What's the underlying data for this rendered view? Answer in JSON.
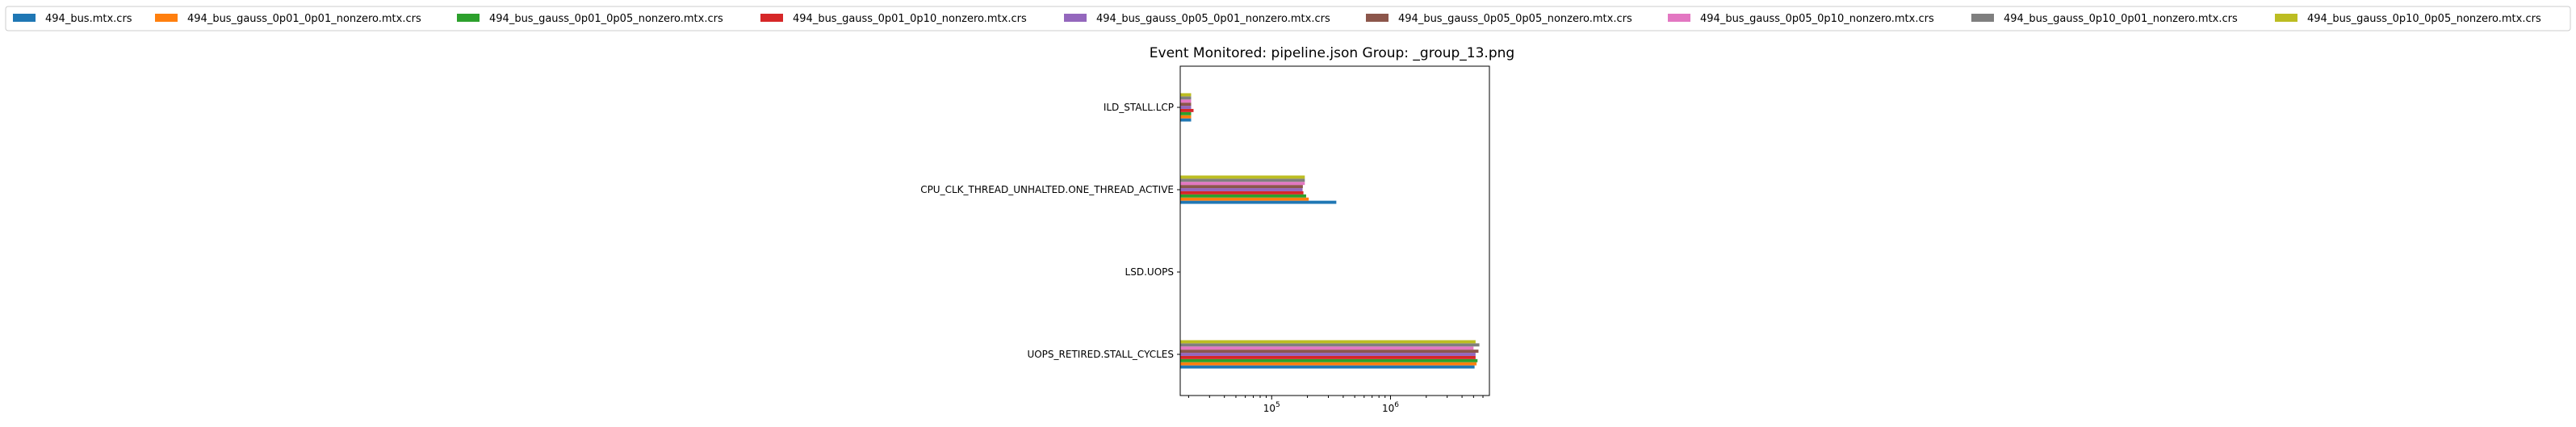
{
  "chart_data": {
    "type": "bar",
    "orientation": "horizontal",
    "title": "Event Monitored: pipeline.json Group: _group_13.png",
    "xlabel": "",
    "ylabel": "",
    "x_scale": "log",
    "xlim": [
      17000,
      6800000
    ],
    "x_ticks": [
      {
        "value": 100000,
        "base": "10",
        "exp": "5"
      },
      {
        "value": 1000000,
        "base": "10",
        "exp": "6"
      }
    ],
    "legend_position": "top, above plot",
    "categories": [
      "UOPS_RETIRED.STALL_CYCLES",
      "LSD.UOPS",
      "CPU_CLK_THREAD_UNHALTED.ONE_THREAD_ACTIVE",
      "ILD_STALL.LCP"
    ],
    "series": [
      {
        "name": "494_bus.mtx.crs",
        "color": "#1f77b4",
        "values": [
          5100000,
          null,
          350000,
          21000
        ]
      },
      {
        "name": "494_bus_gauss_0p01_0p01_nonzero.mtx.crs",
        "color": "#ff7f0e",
        "values": [
          5300000,
          null,
          205000,
          21000
        ]
      },
      {
        "name": "494_bus_gauss_0p01_0p05_nonzero.mtx.crs",
        "color": "#2ca02c",
        "values": [
          5400000,
          null,
          195000,
          21000
        ]
      },
      {
        "name": "494_bus_gauss_0p01_0p10_nonzero.mtx.crs",
        "color": "#d62728",
        "values": [
          5200000,
          null,
          185000,
          22000
        ]
      },
      {
        "name": "494_bus_gauss_0p05_0p01_nonzero.mtx.crs",
        "color": "#9467bd",
        "values": [
          5200000,
          null,
          182000,
          21000
        ]
      },
      {
        "name": "494_bus_gauss_0p05_0p05_nonzero.mtx.crs",
        "color": "#8c564b",
        "values": [
          5500000,
          null,
          183000,
          21000
        ]
      },
      {
        "name": "494_bus_gauss_0p05_0p10_nonzero.mtx.crs",
        "color": "#e377c2",
        "values": [
          5000000,
          null,
          190000,
          21000
        ]
      },
      {
        "name": "494_bus_gauss_0p10_0p01_nonzero.mtx.crs",
        "color": "#7f7f7f",
        "values": [
          5600000,
          null,
          190000,
          21000
        ]
      },
      {
        "name": "494_bus_gauss_0p10_0p05_nonzero.mtx.crs",
        "color": "#bcbd22",
        "values": [
          5200000,
          null,
          190000,
          21000
        ]
      }
    ]
  }
}
